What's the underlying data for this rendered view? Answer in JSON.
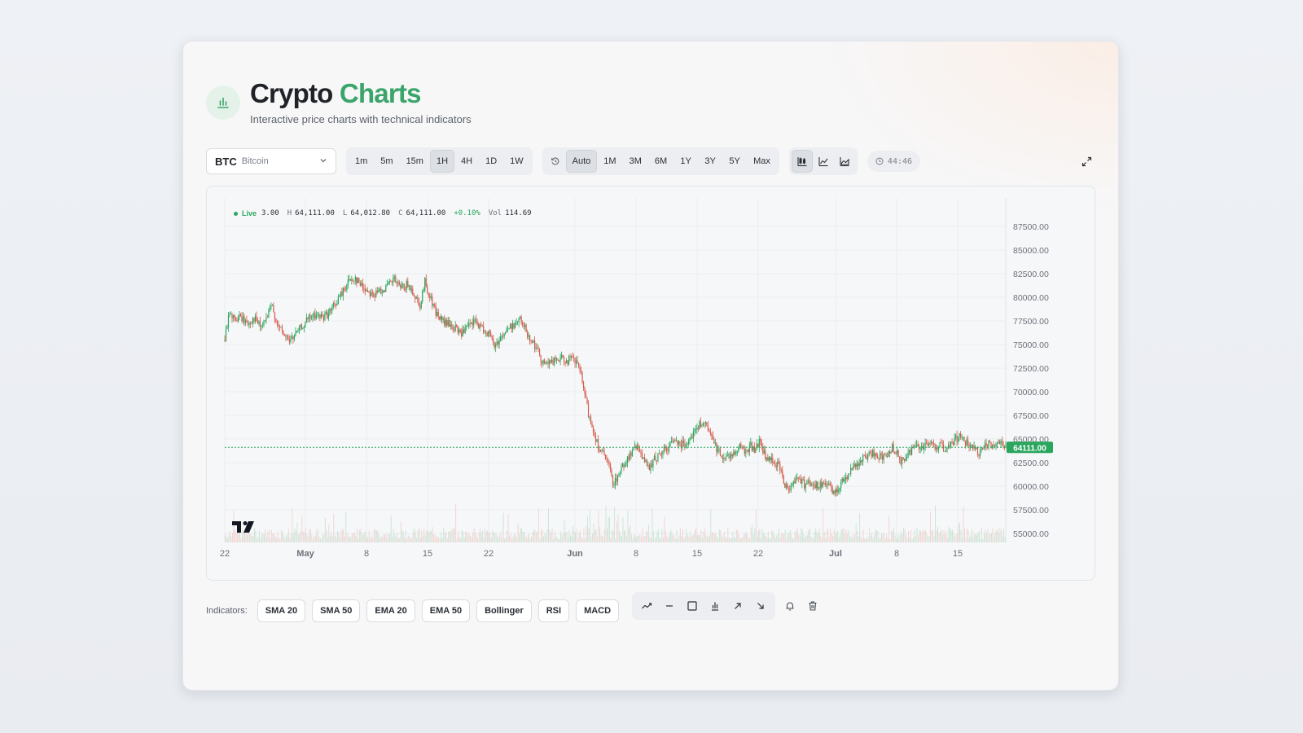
{
  "app": {
    "title_main": "Crypto",
    "title_accent": "Charts",
    "subtitle": "Interactive price charts with technical indicators",
    "logo_icon": "bar-chart-icon",
    "accent_color": "#3aa56a"
  },
  "symbol_select": {
    "symbol": "BTC",
    "name": "Bitcoin",
    "icon": "chevron-down-icon"
  },
  "intervals": {
    "items": [
      "1m",
      "5m",
      "15m",
      "1H",
      "4H",
      "1D",
      "1W"
    ],
    "active": "1H"
  },
  "ranges": {
    "history_icon": "history-icon",
    "items": [
      "Auto",
      "1M",
      "3M",
      "6M",
      "1Y",
      "3Y",
      "5Y",
      "Max"
    ],
    "active": "Auto"
  },
  "chart_types": {
    "items": [
      "candlestick-icon",
      "line-chart-icon",
      "area-chart-icon"
    ],
    "active": "candlestick-icon"
  },
  "timer": {
    "icon": "clock-icon",
    "value": "44:46"
  },
  "expand_icon": "expand-icon",
  "ohlc": {
    "live": "Live",
    "open_partial": "3.00",
    "h_label": "H",
    "high": "64,111.00",
    "l_label": "L",
    "low": "64,012.80",
    "c_label": "C",
    "close": "64,111.00",
    "change": "+0.10%",
    "vol_label": "Vol",
    "vol": "114.69"
  },
  "chart_data": {
    "type": "candlestick",
    "y_ticks": [
      "87500.00",
      "85000.00",
      "82500.00",
      "80000.00",
      "77500.00",
      "75000.00",
      "72500.00",
      "70000.00",
      "67500.00",
      "65000.00",
      "62500.00",
      "60000.00",
      "57500.00",
      "55000.00"
    ],
    "ylim": [
      54000,
      90000
    ],
    "x_ticks": [
      "22",
      "May",
      "8",
      "15",
      "22",
      "Jun",
      "8",
      "15",
      "22",
      "Jul",
      "8",
      "15"
    ],
    "last_price": "64111.00",
    "last_price_value": 64111,
    "up_color": "#2aa65f",
    "down_color": "#d65a4c",
    "price_path": [
      [
        0,
        75500
      ],
      [
        6,
        78500
      ],
      [
        12,
        77600
      ],
      [
        20,
        77900
      ],
      [
        28,
        77200
      ],
      [
        36,
        77800
      ],
      [
        44,
        76800
      ],
      [
        50,
        77500
      ],
      [
        58,
        79100
      ],
      [
        66,
        76800
      ],
      [
        74,
        75900
      ],
      [
        80,
        75400
      ],
      [
        88,
        76100
      ],
      [
        96,
        77000
      ],
      [
        104,
        77800
      ],
      [
        112,
        78100
      ],
      [
        120,
        77900
      ],
      [
        128,
        78300
      ],
      [
        136,
        79300
      ],
      [
        144,
        80400
      ],
      [
        152,
        81700
      ],
      [
        160,
        82100
      ],
      [
        168,
        81200
      ],
      [
        176,
        80700
      ],
      [
        184,
        80200
      ],
      [
        192,
        80800
      ],
      [
        200,
        81100
      ],
      [
        208,
        81900
      ],
      [
        216,
        80900
      ],
      [
        224,
        81300
      ],
      [
        232,
        80500
      ],
      [
        240,
        79200
      ],
      [
        246,
        81600
      ],
      [
        252,
        80100
      ],
      [
        260,
        78300
      ],
      [
        268,
        77400
      ],
      [
        276,
        77100
      ],
      [
        284,
        76600
      ],
      [
        292,
        76200
      ],
      [
        300,
        76900
      ],
      [
        308,
        77400
      ],
      [
        316,
        76700
      ],
      [
        324,
        76200
      ],
      [
        332,
        74800
      ],
      [
        340,
        75900
      ],
      [
        348,
        76600
      ],
      [
        356,
        77200
      ],
      [
        364,
        77600
      ],
      [
        372,
        76200
      ],
      [
        380,
        75100
      ],
      [
        388,
        73600
      ],
      [
        396,
        72900
      ],
      [
        404,
        73200
      ],
      [
        412,
        73500
      ],
      [
        420,
        73300
      ],
      [
        428,
        73400
      ],
      [
        436,
        72600
      ],
      [
        442,
        69800
      ],
      [
        448,
        67300
      ],
      [
        454,
        65600
      ],
      [
        460,
        64100
      ],
      [
        466,
        63200
      ],
      [
        472,
        62100
      ],
      [
        478,
        60200
      ],
      [
        484,
        61300
      ],
      [
        490,
        62200
      ],
      [
        496,
        63100
      ],
      [
        502,
        63700
      ],
      [
        508,
        64300
      ],
      [
        514,
        63100
      ],
      [
        520,
        61800
      ],
      [
        526,
        62500
      ],
      [
        532,
        63200
      ],
      [
        538,
        63600
      ],
      [
        544,
        64100
      ],
      [
        550,
        64600
      ],
      [
        556,
        64900
      ],
      [
        562,
        64400
      ],
      [
        568,
        64800
      ],
      [
        574,
        65400
      ],
      [
        580,
        66100
      ],
      [
        586,
        66700
      ],
      [
        592,
        66300
      ],
      [
        598,
        65200
      ],
      [
        604,
        64100
      ],
      [
        610,
        63400
      ],
      [
        616,
        63000
      ],
      [
        622,
        63300
      ],
      [
        628,
        63800
      ],
      [
        634,
        64200
      ],
      [
        640,
        63600
      ],
      [
        646,
        64300
      ],
      [
        652,
        63900
      ],
      [
        658,
        64800
      ],
      [
        664,
        63100
      ],
      [
        670,
        62700
      ],
      [
        676,
        62600
      ],
      [
        682,
        62000
      ],
      [
        688,
        60200
      ],
      [
        694,
        59800
      ],
      [
        700,
        60700
      ],
      [
        706,
        60900
      ],
      [
        712,
        60200
      ],
      [
        718,
        60500
      ],
      [
        724,
        60300
      ],
      [
        730,
        59800
      ],
      [
        736,
        60400
      ],
      [
        742,
        59900
      ],
      [
        748,
        59300
      ],
      [
        754,
        59800
      ],
      [
        760,
        60700
      ],
      [
        766,
        61300
      ],
      [
        772,
        62000
      ],
      [
        778,
        62400
      ],
      [
        784,
        62800
      ],
      [
        790,
        63100
      ],
      [
        796,
        63600
      ],
      [
        802,
        63300
      ],
      [
        808,
        62900
      ],
      [
        814,
        63500
      ],
      [
        820,
        64100
      ],
      [
        826,
        63700
      ],
      [
        832,
        62600
      ],
      [
        838,
        63100
      ],
      [
        844,
        63900
      ],
      [
        850,
        64400
      ],
      [
        856,
        64100
      ],
      [
        862,
        64600
      ],
      [
        868,
        64400
      ],
      [
        874,
        64200
      ],
      [
        880,
        64400
      ],
      [
        886,
        63600
      ],
      [
        892,
        64300
      ],
      [
        898,
        65000
      ],
      [
        904,
        65300
      ],
      [
        910,
        64700
      ],
      [
        916,
        64200
      ],
      [
        922,
        63800
      ],
      [
        928,
        63400
      ],
      [
        934,
        64100
      ],
      [
        940,
        64600
      ],
      [
        946,
        64200
      ],
      [
        952,
        64900
      ],
      [
        958,
        64400
      ],
      [
        960,
        64111
      ]
    ],
    "volume_scale_max": 1
  },
  "indicators": {
    "label": "Indicators:",
    "items": [
      "SMA 20",
      "SMA 50",
      "EMA 20",
      "EMA 50",
      "Bollinger",
      "RSI",
      "MACD"
    ]
  },
  "drawing_tools": {
    "items": [
      "trend-line-icon",
      "horizontal-line-icon",
      "rectangle-icon",
      "volume-bars-icon",
      "arrow-up-right-icon",
      "arrow-down-right-icon"
    ],
    "extra": [
      "bell-icon",
      "trash-icon"
    ]
  }
}
